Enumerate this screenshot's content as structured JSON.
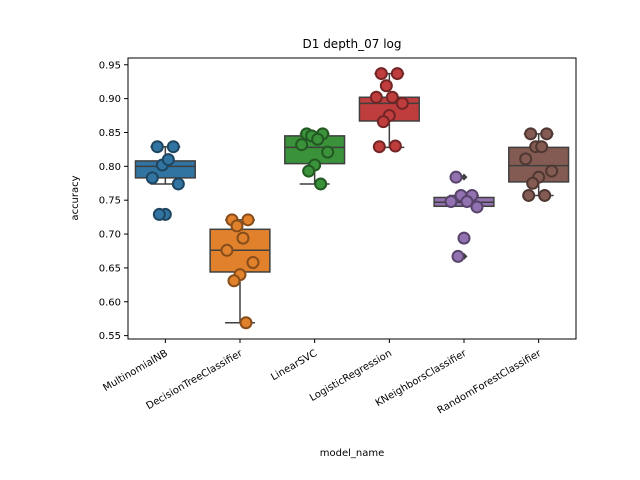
{
  "chart_data": {
    "type": "box",
    "title": "D1 depth_07 log",
    "xlabel": "model_name",
    "ylabel": "accuracy",
    "ylim": [
      0.545,
      0.96
    ],
    "yticks": [
      "0.55",
      "0.60",
      "0.65",
      "0.70",
      "0.75",
      "0.80",
      "0.85",
      "0.90",
      "0.95"
    ],
    "grid": false,
    "categories": [
      "MultinomialNB",
      "DecisionTreeClassifier",
      "LinearSVC",
      "LogisticRegression",
      "KNeighborsClassifier",
      "RandomForestClassifier"
    ],
    "colors": [
      "#3274a1",
      "#e1812c",
      "#3a923a",
      "#c03d3e",
      "#9372b2",
      "#845b53"
    ],
    "boxes": [
      {
        "q1": 0.783,
        "median": 0.8,
        "q3": 0.808,
        "whisker_low": 0.774,
        "whisker_high": 0.829,
        "outliers": [
          0.729,
          0.729
        ]
      },
      {
        "q1": 0.644,
        "median": 0.676,
        "q3": 0.707,
        "whisker_low": 0.569,
        "whisker_high": 0.721,
        "outliers": []
      },
      {
        "q1": 0.804,
        "median": 0.828,
        "q3": 0.845,
        "whisker_low": 0.774,
        "whisker_high": 0.848,
        "outliers": []
      },
      {
        "q1": 0.867,
        "median": 0.893,
        "q3": 0.902,
        "whisker_low": 0.828,
        "whisker_high": 0.937,
        "outliers": []
      },
      {
        "q1": 0.741,
        "median": 0.747,
        "q3": 0.754,
        "whisker_low": 0.741,
        "whisker_high": 0.757,
        "outliers": [
          0.784,
          0.694,
          0.667
        ]
      },
      {
        "q1": 0.777,
        "median": 0.801,
        "q3": 0.828,
        "whisker_low": 0.757,
        "whisker_high": 0.848,
        "outliers": []
      }
    ],
    "points": [
      [
        0.829,
        0.829,
        0.802,
        0.81,
        0.783,
        0.774,
        0.729,
        0.729
      ],
      [
        0.721,
        0.721,
        0.712,
        0.694,
        0.676,
        0.658,
        0.64,
        0.631,
        0.569
      ],
      [
        0.848,
        0.848,
        0.845,
        0.84,
        0.832,
        0.821,
        0.802,
        0.793,
        0.774
      ],
      [
        0.937,
        0.937,
        0.919,
        0.902,
        0.902,
        0.893,
        0.875,
        0.866,
        0.83,
        0.829
      ],
      [
        0.784,
        0.757,
        0.757,
        0.748,
        0.748,
        0.74,
        0.694,
        0.667
      ],
      [
        0.848,
        0.848,
        0.829,
        0.829,
        0.811,
        0.793,
        0.784,
        0.775,
        0.757,
        0.757
      ]
    ]
  }
}
